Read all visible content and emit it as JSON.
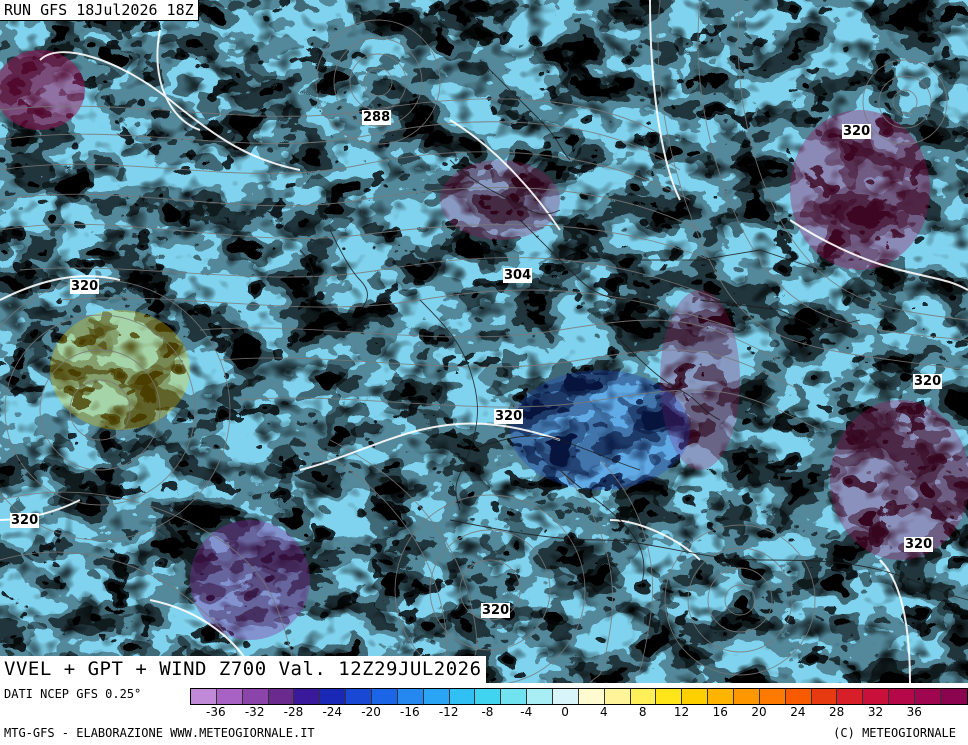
{
  "header": {
    "run_label": "RUN GFS 18Jul2026 18Z"
  },
  "map": {
    "geopotential_labels": [
      "288",
      "320",
      "320",
      "304",
      "320",
      "320",
      "320",
      "320",
      "320"
    ],
    "stream_color": "#7a7a7a",
    "contour_color": "#ffffff",
    "coast_color": "#222222"
  },
  "title": "VVEL + GPT + WIND Z700 Val. 12Z29JUL2026",
  "footer": {
    "data_source": "DATI NCEP GFS 0.25°",
    "left": "MTG-GFS - ELABORAZIONE WWW.METEOGIORNALE.IT",
    "right": "(C) METEOGIORNALE"
  },
  "scale": {
    "colors": [
      "#c08ad8",
      "#a862c4",
      "#8a44aa",
      "#6a2a8e",
      "#3a1a9a",
      "#1a28b8",
      "#1848d4",
      "#1a66e6",
      "#2488f0",
      "#2aa4f4",
      "#30c0f4",
      "#40d4f0",
      "#70e2f0",
      "#a8eef4",
      "#d8f6fa",
      "#fffbd0",
      "#fff49a",
      "#fff05a",
      "#ffe61a",
      "#ffd000",
      "#ffb400",
      "#ff9800",
      "#ff7a00",
      "#f85a00",
      "#e83a10",
      "#d81e28",
      "#c8103a",
      "#b40848",
      "#a00650",
      "#8a0450"
    ],
    "tick_labels": [
      "-36",
      "-32",
      "-28",
      "-24",
      "-20",
      "-16",
      "-12",
      "-8",
      "-4",
      "0",
      "4",
      "8",
      "12",
      "16",
      "20",
      "24",
      "28",
      "32",
      "36"
    ]
  }
}
